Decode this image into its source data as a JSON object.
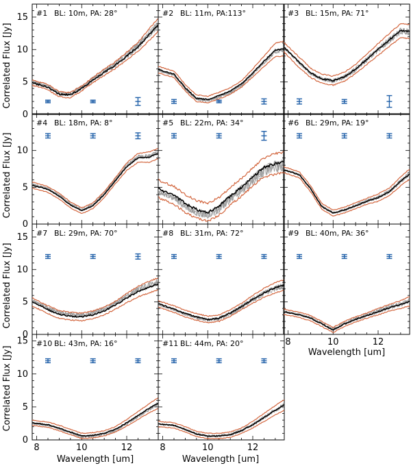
{
  "figure": {
    "ylabel": "Correlated Flux [Jy]",
    "xlabel": "Wavelength [um]",
    "colors": {
      "main": "#000000",
      "envelope": "#d2643c",
      "individual": "#9a9a9a",
      "errorbar": "#1f5fa8"
    }
  },
  "chart_data": [
    {
      "type": "line",
      "id": "#1",
      "label": "#1",
      "text": "BL: 10m, PA: 28°",
      "xlim": [
        7.8,
        13.4
      ],
      "ylim": [
        0,
        17
      ],
      "xticks": [
        8,
        10,
        12
      ],
      "yticks": [
        0,
        5,
        10,
        15
      ],
      "x": [
        7.8,
        8.5,
        9.0,
        9.5,
        10.0,
        10.5,
        11.0,
        11.5,
        12.0,
        12.5,
        13.0,
        13.4
      ],
      "y": [
        4.9,
        4.2,
        3.1,
        3.0,
        4.0,
        5.3,
        6.5,
        7.6,
        9.0,
        10.4,
        12.3,
        13.8
      ],
      "upper": [
        5.3,
        4.6,
        3.5,
        3.4,
        4.4,
        5.7,
        7.0,
        8.1,
        9.6,
        11.1,
        13.2,
        14.8
      ],
      "lower": [
        4.5,
        3.8,
        2.7,
        2.6,
        3.6,
        4.9,
        6.0,
        7.1,
        8.4,
        9.7,
        11.4,
        12.8
      ],
      "errorbars": [
        {
          "x": 8.5,
          "y": 2.0,
          "err": 0.2
        },
        {
          "x": 10.5,
          "y": 2.0,
          "err": 0.2
        },
        {
          "x": 12.5,
          "y": 2.0,
          "err": 0.6
        }
      ],
      "noise": 0.4,
      "scatter": 0.9
    },
    {
      "type": "line",
      "id": "#2",
      "label": "#2",
      "text": "BL: 11m, PA:113°",
      "xlim": [
        7.8,
        13.4
      ],
      "ylim": [
        0,
        17
      ],
      "xticks": [
        8,
        10,
        12
      ],
      "yticks": [
        0,
        5,
        10,
        15
      ],
      "x": [
        7.8,
        8.5,
        9.0,
        9.5,
        10.0,
        10.5,
        11.0,
        11.5,
        12.0,
        12.5,
        13.0,
        13.4
      ],
      "y": [
        6.9,
        6.2,
        4.1,
        2.5,
        2.3,
        2.9,
        3.6,
        4.7,
        6.4,
        8.2,
        9.9,
        10.1
      ],
      "upper": [
        7.4,
        6.7,
        4.6,
        3.0,
        2.8,
        3.4,
        4.1,
        5.2,
        7.0,
        9.0,
        11.0,
        11.3
      ],
      "lower": [
        6.4,
        5.7,
        3.6,
        2.0,
        1.8,
        2.4,
        3.1,
        4.2,
        5.8,
        7.4,
        8.9,
        9.0
      ],
      "errorbars": [
        {
          "x": 8.5,
          "y": 2.0,
          "err": 0.3
        },
        {
          "x": 10.5,
          "y": 2.0,
          "err": 0.2
        },
        {
          "x": 12.5,
          "y": 2.0,
          "err": 0.4
        }
      ],
      "noise": 0.25,
      "scatter": 0.3
    },
    {
      "type": "line",
      "id": "#3",
      "label": "#3",
      "text": "BL: 15m, PA: 71°",
      "xlim": [
        7.8,
        13.4
      ],
      "ylim": [
        0,
        17
      ],
      "xticks": [
        8,
        10,
        12
      ],
      "yticks": [
        0,
        5,
        10,
        15
      ],
      "x": [
        7.8,
        8.5,
        9.0,
        9.5,
        10.0,
        10.5,
        11.0,
        11.5,
        12.0,
        12.5,
        13.0,
        13.4
      ],
      "y": [
        10.4,
        8.0,
        6.4,
        5.5,
        5.2,
        5.8,
        7.0,
        8.5,
        10.0,
        11.5,
        12.9,
        12.8
      ],
      "upper": [
        11.1,
        8.8,
        7.1,
        6.2,
        5.9,
        6.5,
        7.7,
        9.3,
        10.9,
        12.5,
        14.0,
        13.9
      ],
      "lower": [
        9.7,
        7.2,
        5.7,
        4.8,
        4.5,
        5.1,
        6.3,
        7.7,
        9.1,
        10.5,
        11.8,
        11.7
      ],
      "errorbars": [
        {
          "x": 8.5,
          "y": 2.0,
          "err": 0.4
        },
        {
          "x": 10.5,
          "y": 2.0,
          "err": 0.3
        },
        {
          "x": 12.5,
          "y": 2.0,
          "err": 0.9
        }
      ],
      "noise": 0.35,
      "scatter": 0.5
    },
    {
      "type": "line",
      "id": "#4",
      "label": "#4",
      "text": "BL: 18m, PA:  8°",
      "xlim": [
        7.8,
        13.4
      ],
      "ylim": [
        0,
        15
      ],
      "xticks": [
        8,
        10,
        12
      ],
      "yticks": [
        0,
        5,
        10
      ],
      "x": [
        7.8,
        8.5,
        9.0,
        9.5,
        10.0,
        10.5,
        11.0,
        11.5,
        12.0,
        12.5,
        13.0,
        13.4
      ],
      "y": [
        5.3,
        4.7,
        3.8,
        2.6,
        1.8,
        2.5,
        4.0,
        5.9,
        7.8,
        9.0,
        9.1,
        9.6
      ],
      "upper": [
        5.7,
        5.1,
        4.2,
        3.0,
        2.2,
        2.9,
        4.4,
        6.3,
        8.3,
        9.6,
        9.8,
        10.3
      ],
      "lower": [
        4.9,
        4.3,
        3.4,
        2.2,
        1.4,
        2.1,
        3.6,
        5.5,
        7.3,
        8.4,
        8.4,
        8.9
      ],
      "errorbars": [
        {
          "x": 8.5,
          "y": 12.0,
          "err": 0.3
        },
        {
          "x": 10.5,
          "y": 12.0,
          "err": 0.3
        },
        {
          "x": 12.5,
          "y": 12.0,
          "err": 0.4
        }
      ],
      "noise": 0.2,
      "scatter": 0.4
    },
    {
      "type": "line",
      "id": "#5",
      "label": "#5",
      "text": "BL: 22m, PA: 34°",
      "xlim": [
        7.8,
        13.4
      ],
      "ylim": [
        0,
        15
      ],
      "xticks": [
        8,
        10,
        12
      ],
      "yticks": [
        0,
        5,
        10
      ],
      "x": [
        7.8,
        8.5,
        9.0,
        9.5,
        10.0,
        10.5,
        11.0,
        11.5,
        12.0,
        12.5,
        13.0,
        13.4
      ],
      "y": [
        4.8,
        3.9,
        2.8,
        2.0,
        1.6,
        2.4,
        3.8,
        5.0,
        6.4,
        7.7,
        8.2,
        8.4
      ],
      "upper": [
        6.0,
        5.1,
        4.0,
        3.2,
        2.8,
        3.6,
        5.0,
        6.2,
        7.6,
        9.0,
        9.6,
        9.8
      ],
      "lower": [
        3.6,
        2.7,
        1.6,
        0.8,
        0.4,
        1.2,
        2.6,
        3.8,
        5.2,
        6.4,
        6.8,
        7.0
      ],
      "errorbars": [
        {
          "x": 8.5,
          "y": 12.0,
          "err": 0.3
        },
        {
          "x": 10.5,
          "y": 12.0,
          "err": 0.3
        },
        {
          "x": 12.5,
          "y": 12.0,
          "err": 0.6
        }
      ],
      "noise": 0.6,
      "scatter": 1.2
    },
    {
      "type": "line",
      "id": "#6",
      "label": "#6",
      "text": "BL: 29m, PA: 19°",
      "xlim": [
        7.8,
        13.4
      ],
      "ylim": [
        0,
        15
      ],
      "xticks": [
        8,
        10,
        12
      ],
      "yticks": [
        0,
        5,
        10
      ],
      "x": [
        7.8,
        8.5,
        9.0,
        9.5,
        10.0,
        10.5,
        11.0,
        11.5,
        12.0,
        12.5,
        13.0,
        13.4
      ],
      "y": [
        7.4,
        6.7,
        4.8,
        2.4,
        1.5,
        1.9,
        2.5,
        3.1,
        3.6,
        4.4,
        5.8,
        6.8
      ],
      "upper": [
        7.8,
        7.1,
        5.2,
        2.8,
        1.9,
        2.3,
        2.9,
        3.5,
        4.1,
        4.9,
        6.4,
        7.5
      ],
      "lower": [
        7.0,
        6.3,
        4.4,
        2.0,
        1.1,
        1.5,
        2.1,
        2.7,
        3.1,
        3.9,
        5.2,
        6.1
      ],
      "errorbars": [
        {
          "x": 8.5,
          "y": 12.0,
          "err": 0.3
        },
        {
          "x": 10.5,
          "y": 12.0,
          "err": 0.3
        },
        {
          "x": 12.5,
          "y": 12.0,
          "err": 0.3
        }
      ],
      "noise": 0.2,
      "scatter": 0.3
    },
    {
      "type": "line",
      "id": "#7",
      "label": "#7",
      "text": "BL: 29m, PA: 70°",
      "xlim": [
        7.8,
        13.4
      ],
      "ylim": [
        0,
        17
      ],
      "xticks": [
        8,
        10,
        12
      ],
      "yticks": [
        0,
        5,
        10,
        15
      ],
      "x": [
        7.8,
        8.5,
        9.0,
        9.5,
        10.0,
        10.5,
        11.0,
        11.5,
        12.0,
        12.5,
        13.0,
        13.4
      ],
      "y": [
        5.0,
        3.8,
        3.1,
        2.8,
        2.7,
        3.0,
        3.6,
        4.5,
        5.6,
        6.6,
        7.3,
        7.8
      ],
      "upper": [
        5.6,
        4.4,
        3.7,
        3.4,
        3.3,
        3.6,
        4.2,
        5.1,
        6.3,
        7.4,
        8.2,
        8.7
      ],
      "lower": [
        4.4,
        3.2,
        2.5,
        2.2,
        2.1,
        2.4,
        3.0,
        3.9,
        4.9,
        5.8,
        6.4,
        6.9
      ],
      "errorbars": [
        {
          "x": 8.5,
          "y": 12.0,
          "err": 0.3
        },
        {
          "x": 10.5,
          "y": 12.0,
          "err": 0.3
        },
        {
          "x": 12.5,
          "y": 12.0,
          "err": 0.4
        }
      ],
      "noise": 0.35,
      "scatter": 0.6
    },
    {
      "type": "line",
      "id": "#8",
      "label": "#8",
      "text": "BL: 31m, PA: 72°",
      "xlim": [
        7.8,
        13.4
      ],
      "ylim": [
        0,
        17
      ],
      "xticks": [
        8,
        10,
        12
      ],
      "yticks": [
        0,
        5,
        10,
        15
      ],
      "x": [
        7.8,
        8.5,
        9.0,
        9.5,
        10.0,
        10.5,
        11.0,
        11.5,
        12.0,
        12.5,
        13.0,
        13.4
      ],
      "y": [
        4.7,
        3.9,
        3.2,
        2.7,
        2.3,
        2.5,
        3.3,
        4.3,
        5.4,
        6.4,
        7.2,
        7.6
      ],
      "upper": [
        5.2,
        4.4,
        3.7,
        3.2,
        2.8,
        3.0,
        3.8,
        4.8,
        6.0,
        7.1,
        8.0,
        8.4
      ],
      "lower": [
        4.2,
        3.4,
        2.7,
        2.2,
        1.8,
        2.0,
        2.8,
        3.8,
        4.8,
        5.7,
        6.4,
        6.8
      ],
      "errorbars": [
        {
          "x": 8.5,
          "y": 12.0,
          "err": 0.3
        },
        {
          "x": 10.5,
          "y": 12.0,
          "err": 0.3
        },
        {
          "x": 12.5,
          "y": 12.0,
          "err": 0.3
        }
      ],
      "noise": 0.3,
      "scatter": 0.5
    },
    {
      "type": "line",
      "id": "#9",
      "label": "#9",
      "text": "BL: 40m, PA: 36°",
      "xlim": [
        7.8,
        13.4
      ],
      "ylim": [
        0,
        17
      ],
      "xticks": [
        8,
        10,
        12
      ],
      "yticks": [
        0,
        5,
        10,
        15
      ],
      "x": [
        7.8,
        8.5,
        9.0,
        9.5,
        10.0,
        10.5,
        11.0,
        11.5,
        12.0,
        12.5,
        13.0,
        13.4
      ],
      "y": [
        3.5,
        3.0,
        2.5,
        1.6,
        0.7,
        1.6,
        2.3,
        2.9,
        3.5,
        4.1,
        4.6,
        5.1
      ],
      "upper": [
        3.9,
        3.4,
        2.9,
        2.0,
        1.1,
        2.0,
        2.7,
        3.3,
        4.0,
        4.6,
        5.2,
        5.8
      ],
      "lower": [
        3.1,
        2.6,
        2.1,
        1.2,
        0.3,
        1.2,
        1.9,
        2.5,
        3.0,
        3.6,
        4.0,
        4.4
      ],
      "errorbars": [
        {
          "x": 8.5,
          "y": 12.0,
          "err": 0.3
        },
        {
          "x": 10.5,
          "y": 12.0,
          "err": 0.3
        },
        {
          "x": 12.5,
          "y": 12.0,
          "err": 0.3
        }
      ],
      "noise": 0.25,
      "scatter": 0.3
    },
    {
      "type": "line",
      "id": "#10",
      "label": "#10",
      "text": "BL: 43m, PA: 16°",
      "xlim": [
        7.8,
        13.4
      ],
      "ylim": [
        0,
        16
      ],
      "xticks": [
        8,
        10,
        12
      ],
      "yticks": [
        0,
        5,
        10,
        15
      ],
      "x": [
        7.8,
        8.5,
        9.0,
        9.5,
        10.0,
        10.5,
        11.0,
        11.5,
        12.0,
        12.5,
        13.0,
        13.4
      ],
      "y": [
        2.6,
        2.3,
        1.8,
        1.2,
        0.6,
        0.7,
        1.0,
        1.6,
        2.6,
        3.7,
        4.8,
        5.6
      ],
      "upper": [
        3.0,
        2.7,
        2.2,
        1.6,
        1.0,
        1.1,
        1.4,
        2.0,
        3.1,
        4.3,
        5.5,
        6.4
      ],
      "lower": [
        2.2,
        1.9,
        1.4,
        0.8,
        0.2,
        0.3,
        0.6,
        1.2,
        2.1,
        3.1,
        4.1,
        4.8
      ],
      "errorbars": [
        {
          "x": 8.5,
          "y": 12.0,
          "err": 0.3
        },
        {
          "x": 10.5,
          "y": 12.0,
          "err": 0.3
        },
        {
          "x": 12.5,
          "y": 12.0,
          "err": 0.3
        }
      ],
      "noise": 0.2,
      "scatter": 0.3
    },
    {
      "type": "line",
      "id": "#11",
      "label": "#11",
      "text": "BL: 44m, PA: 20°",
      "xlim": [
        7.8,
        13.4
      ],
      "ylim": [
        0,
        16
      ],
      "xticks": [
        8,
        10,
        12
      ],
      "yticks": [
        0,
        5,
        10,
        15
      ],
      "x": [
        7.8,
        8.5,
        9.0,
        9.5,
        10.0,
        10.5,
        11.0,
        11.5,
        12.0,
        12.5,
        13.0,
        13.4
      ],
      "y": [
        2.4,
        2.2,
        1.6,
        0.9,
        0.6,
        0.6,
        0.8,
        1.4,
        2.3,
        3.4,
        4.5,
        5.3
      ],
      "upper": [
        2.8,
        2.6,
        2.0,
        1.3,
        1.0,
        1.0,
        1.2,
        1.8,
        2.8,
        4.0,
        5.2,
        6.1
      ],
      "lower": [
        2.0,
        1.8,
        1.2,
        0.5,
        0.2,
        0.2,
        0.4,
        1.0,
        1.8,
        2.8,
        3.8,
        4.5
      ],
      "errorbars": [
        {
          "x": 8.5,
          "y": 12.0,
          "err": 0.3
        },
        {
          "x": 10.5,
          "y": 12.0,
          "err": 0.3
        },
        {
          "x": 12.5,
          "y": 12.0,
          "err": 0.3
        }
      ],
      "noise": 0.2,
      "scatter": 0.3
    }
  ]
}
